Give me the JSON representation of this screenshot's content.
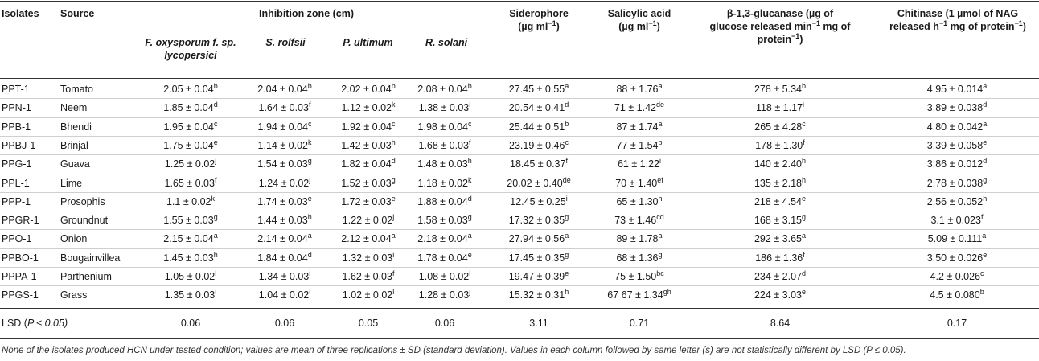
{
  "headers": {
    "isolates": "Isolates",
    "source": "Source",
    "inhibition_zone": "Inhibition zone (cm)",
    "fox": [
      "F. oxysporum f. sp.",
      "lycopersici"
    ],
    "srolfsii": "S. rolfsii",
    "pultimum": "P. ultimum",
    "rsolani": "R. solani",
    "siderophore": [
      "Siderophore",
      "(µg ml",
      "−1",
      ")"
    ],
    "salicylic": [
      "Salicylic acid",
      "(µg ml",
      "−1",
      ")"
    ],
    "glucanase": [
      "β-1,3-glucanase (µg of",
      "glucose released min",
      "−1",
      " mg of",
      "protein",
      "−1",
      ")"
    ],
    "chitinase": [
      "Chitinase (1 µmol of NAG",
      "released h",
      "−1",
      " mg of protein",
      "−1",
      ")"
    ]
  },
  "rows": [
    {
      "isolate": "PPT-1",
      "source": "Tomato",
      "cells": [
        [
          "2.05 ± 0.04",
          "b"
        ],
        [
          "2.04 ± 0.04",
          "b"
        ],
        [
          "2.02 ± 0.04",
          "b"
        ],
        [
          "2.08 ± 0.04",
          "b"
        ],
        [
          "27.45 ± 0.55",
          "a"
        ],
        [
          "88 ± 1.76",
          "a"
        ],
        [
          "278 ± 5.34",
          "b"
        ],
        [
          "4.95 ± 0.014",
          "a"
        ]
      ]
    },
    {
      "isolate": "PPN-1",
      "source": "Neem",
      "cells": [
        [
          "1.85 ± 0.04",
          "d"
        ],
        [
          "1.64 ± 0.03",
          "f"
        ],
        [
          "1.12 ± 0.02",
          "k"
        ],
        [
          "1.38 ± 0.03",
          "i"
        ],
        [
          "20.54 ± 0.41",
          "d"
        ],
        [
          "71 ± 1.42",
          "de"
        ],
        [
          "118 ± 1.17",
          "i"
        ],
        [
          "3.89 ± 0.038",
          "d"
        ]
      ]
    },
    {
      "isolate": "PPB-1",
      "source": "Bhendi",
      "cells": [
        [
          "1.95 ± 0.04",
          "c"
        ],
        [
          "1.94 ± 0.04",
          "c"
        ],
        [
          "1.92 ± 0.04",
          "c"
        ],
        [
          "1.98 ± 0.04",
          "c"
        ],
        [
          "25.44 ± 0.51",
          "b"
        ],
        [
          "87 ± 1.74",
          "a"
        ],
        [
          "265 ± 4.28",
          "c"
        ],
        [
          "4.80 ± 0.042",
          "a"
        ]
      ]
    },
    {
      "isolate": "PPBJ-1",
      "source": "Brinjal",
      "cells": [
        [
          "1.75 ± 0.04",
          "e"
        ],
        [
          "1.14 ± 0.02",
          "k"
        ],
        [
          "1.42 ± 0.03",
          "h"
        ],
        [
          "1.68 ± 0.03",
          "f"
        ],
        [
          "23.19 ± 0.46",
          "c"
        ],
        [
          "77 ± 1.54",
          "b"
        ],
        [
          "178 ± 1.30",
          "f"
        ],
        [
          "3.39 ± 0.058",
          "e"
        ]
      ]
    },
    {
      "isolate": "PPG-1",
      "source": "Guava",
      "cells": [
        [
          "1.25 ± 0.02",
          "j"
        ],
        [
          "1.54 ± 0.03",
          "g"
        ],
        [
          "1.82 ± 0.04",
          "d"
        ],
        [
          "1.48 ± 0.03",
          "h"
        ],
        [
          "18.45 ± 0.37",
          "f"
        ],
        [
          "61 ± 1.22",
          "i"
        ],
        [
          "140 ± 2.40",
          "h"
        ],
        [
          "3.86 ± 0.012",
          "d"
        ]
      ]
    },
    {
      "isolate": "PPL-1",
      "source": "Lime",
      "cells": [
        [
          "1.65 ± 0.03",
          "f"
        ],
        [
          "1.24 ± 0.02",
          "j"
        ],
        [
          "1.52 ± 0.03",
          "g"
        ],
        [
          "1.18 ± 0.02",
          "k"
        ],
        [
          "20.02 ± 0.40",
          "de"
        ],
        [
          "70 ± 1.40",
          "ef"
        ],
        [
          "135 ± 2.18",
          "h"
        ],
        [
          "2.78 ± 0.038",
          "g"
        ]
      ]
    },
    {
      "isolate": "PPP-1",
      "source": "Prosophis",
      "cells": [
        [
          "1.1 ± 0.02",
          "k"
        ],
        [
          "1.74 ± 0.03",
          "e"
        ],
        [
          "1.72 ± 0.03",
          "e"
        ],
        [
          "1.88 ± 0.04",
          "d"
        ],
        [
          "12.45 ± 0.25",
          "i"
        ],
        [
          "65 ± 1.30",
          "h"
        ],
        [
          "218 ± 4.54",
          "e"
        ],
        [
          "2.56 ± 0.052",
          "h"
        ]
      ]
    },
    {
      "isolate": "PPGR-1",
      "source": "Groundnut",
      "cells": [
        [
          "1.55 ± 0.03",
          "g"
        ],
        [
          "1.44 ± 0.03",
          "h"
        ],
        [
          "1.22 ± 0.02",
          "j"
        ],
        [
          "1.58 ± 0.03",
          "g"
        ],
        [
          "17.32 ± 0.35",
          "g"
        ],
        [
          "73 ± 1.46",
          "cd"
        ],
        [
          "168 ± 3.15",
          "g"
        ],
        [
          "3.1 ± 0.023",
          "f"
        ]
      ]
    },
    {
      "isolate": "PPO-1",
      "source": "Onion",
      "cells": [
        [
          "2.15 ± 0.04",
          "a"
        ],
        [
          "2.14 ± 0.04",
          "a"
        ],
        [
          "2.12 ± 0.04",
          "a"
        ],
        [
          "2.18 ± 0.04",
          "a"
        ],
        [
          "27.94 ± 0.56",
          "a"
        ],
        [
          "89 ± 1.78",
          "a"
        ],
        [
          "292 ± 3.65",
          "a"
        ],
        [
          "5.09 ± 0.111",
          "a"
        ]
      ]
    },
    {
      "isolate": "PPBO-1",
      "source": "Bougainvillea",
      "cells": [
        [
          "1.45 ± 0.03",
          "h"
        ],
        [
          "1.84 ± 0.04",
          "d"
        ],
        [
          "1.32 ± 0.03",
          "i"
        ],
        [
          "1.78 ± 0.04",
          "e"
        ],
        [
          "17.45 ± 0.35",
          "g"
        ],
        [
          "68 ± 1.36",
          "g"
        ],
        [
          "186 ± 1.36",
          "f"
        ],
        [
          "3.50 ± 0.026",
          "e"
        ]
      ]
    },
    {
      "isolate": "PPPA-1",
      "source": "Parthenium",
      "cells": [
        [
          "1.05 ± 0.02",
          "l"
        ],
        [
          "1.34 ± 0.03",
          "i"
        ],
        [
          "1.62 ± 0.03",
          "f"
        ],
        [
          "1.08 ± 0.02",
          "l"
        ],
        [
          "19.47 ± 0.39",
          "e"
        ],
        [
          "75 ± 1.50",
          "bc"
        ],
        [
          "234 ± 2.07",
          "d"
        ],
        [
          "4.2 ± 0.026",
          "c"
        ]
      ]
    },
    {
      "isolate": "PPGS-1",
      "source": "Grass",
      "cells": [
        [
          "1.35 ± 0.03",
          "i"
        ],
        [
          "1.04 ± 0.02",
          "l"
        ],
        [
          "1.02 ± 0.02",
          "l"
        ],
        [
          "1.28 ± 0.03",
          "j"
        ],
        [
          "15.32 ± 0.31",
          "h"
        ],
        [
          "67 67 ± 1.34",
          "gh"
        ],
        [
          "224 ± 3.03",
          "e"
        ],
        [
          "4.5 ± 0.080",
          "b"
        ]
      ]
    }
  ],
  "lsd": {
    "label_prefix": "LSD (",
    "label_p": "P",
    "label_suffix": " ≤ 0.05)",
    "values": [
      "0.06",
      "0.06",
      "0.05",
      "0.06",
      "3.11",
      "0.71",
      "8.64",
      "0.17"
    ]
  },
  "footnote": "None of the isolates produced HCN under tested condition; values are mean of three replications ± SD (standard deviation). Values in each column followed by same letter (s) are not statistically different by LSD (P ≤ 0.05)."
}
